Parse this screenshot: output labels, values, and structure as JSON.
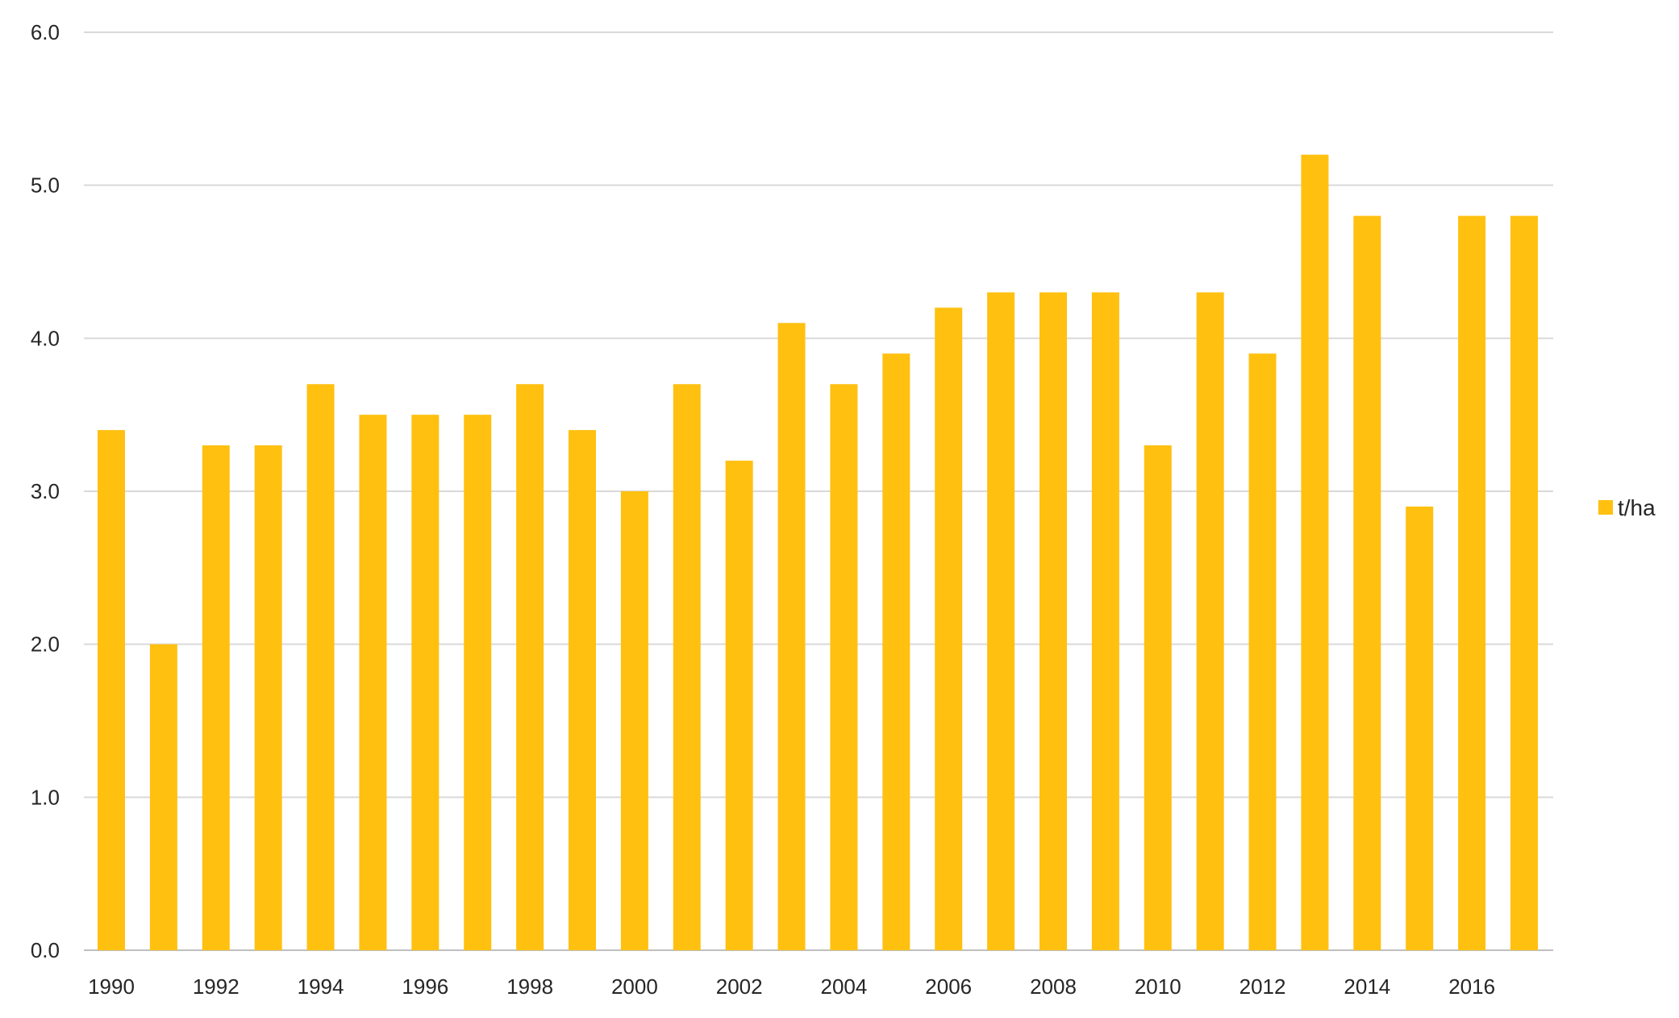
{
  "chart_data": {
    "type": "bar",
    "categories": [
      "1990",
      "1991",
      "1992",
      "1993",
      "1994",
      "1995",
      "1996",
      "1997",
      "1998",
      "1999",
      "2000",
      "2001",
      "2002",
      "2003",
      "2004",
      "2005",
      "2006",
      "2007",
      "2008",
      "2009",
      "2010",
      "2011",
      "2012",
      "2013",
      "2014",
      "2015",
      "2016",
      "2017"
    ],
    "x_tick_labels": [
      "1990",
      "1992",
      "1994",
      "1996",
      "1998",
      "2000",
      "2002",
      "2004",
      "2006",
      "2008",
      "2010",
      "2012",
      "2014",
      "2016"
    ],
    "series": [
      {
        "name": "t/ha",
        "color": "#FFC010",
        "values": [
          3.4,
          2.0,
          3.3,
          3.3,
          3.7,
          3.5,
          3.5,
          3.5,
          3.7,
          3.4,
          3.0,
          3.7,
          3.2,
          4.1,
          3.7,
          3.9,
          4.2,
          4.3,
          4.3,
          4.3,
          3.3,
          4.3,
          3.9,
          5.2,
          4.8,
          2.9,
          4.8,
          4.8
        ]
      }
    ],
    "ylim": [
      0,
      6
    ],
    "y_ticks": [
      "0.0",
      "1.0",
      "2.0",
      "3.0",
      "4.0",
      "5.0",
      "6.0"
    ],
    "title": "",
    "xlabel": "",
    "ylabel": "",
    "grid": true,
    "legend_position": "right"
  }
}
